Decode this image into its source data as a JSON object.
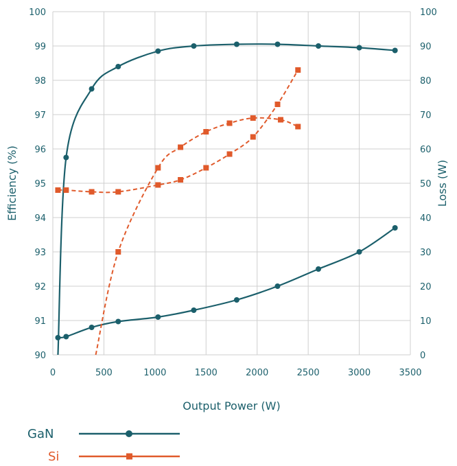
{
  "chart_data": {
    "type": "line",
    "xlabel": "Output Power (W)",
    "ylabel_left": "Efficiency (%)",
    "ylabel_right": "Loss (W)",
    "xlim": [
      0,
      3500
    ],
    "ylim_left": [
      90,
      100
    ],
    "ylim_right": [
      0,
      100
    ],
    "xticks": [
      "0",
      "500",
      "1000",
      "1500",
      "2000",
      "2500",
      "3000",
      "3500"
    ],
    "yticks_left": [
      "90",
      "91",
      "92",
      "93",
      "94",
      "95",
      "96",
      "97",
      "98",
      "99",
      "100"
    ],
    "yticks_right": [
      "0",
      "10",
      "20",
      "30",
      "40",
      "50",
      "60",
      "70",
      "80",
      "90",
      "100"
    ],
    "grid": true,
    "series": [
      {
        "name": "GaN",
        "kind": "efficiency",
        "axis": "left",
        "color": "#1b5f6b",
        "line": "solid",
        "marker": "circle",
        "points": [
          [
            130,
            95.75
          ],
          [
            380,
            97.75
          ],
          [
            640,
            98.4
          ],
          [
            1030,
            98.85
          ],
          [
            1380,
            99.0
          ],
          [
            1800,
            99.05
          ],
          [
            2200,
            99.05
          ],
          [
            2600,
            99.0
          ],
          [
            3000,
            98.95
          ],
          [
            3350,
            98.87
          ]
        ],
        "curve_start": [
          50,
          90.0
        ]
      },
      {
        "name": "GaN",
        "kind": "loss",
        "axis": "right",
        "color": "#1b5f6b",
        "line": "solid",
        "marker": "circle",
        "points": [
          [
            50,
            5
          ],
          [
            130,
            5.3
          ],
          [
            380,
            8
          ],
          [
            640,
            9.7
          ],
          [
            1030,
            11
          ],
          [
            1380,
            13
          ],
          [
            1800,
            16
          ],
          [
            2200,
            20
          ],
          [
            2600,
            25
          ],
          [
            3000,
            30
          ],
          [
            3350,
            37
          ]
        ]
      },
      {
        "name": "Si",
        "kind": "efficiency",
        "axis": "left",
        "color": "#e05a2b",
        "line": "dashed",
        "marker": "square",
        "points": [
          [
            640,
            93.0
          ],
          [
            1030,
            95.45
          ],
          [
            1250,
            96.05
          ],
          [
            1500,
            96.5
          ],
          [
            1730,
            96.75
          ],
          [
            1960,
            96.9
          ],
          [
            2230,
            96.85
          ],
          [
            2400,
            96.65
          ]
        ],
        "curve_start": [
          420,
          90.0
        ]
      },
      {
        "name": "Si",
        "kind": "loss",
        "axis": "right",
        "color": "#e05a2b",
        "line": "dashed",
        "marker": "square",
        "points": [
          [
            50,
            48
          ],
          [
            130,
            48
          ],
          [
            380,
            47.5
          ],
          [
            640,
            47.5
          ],
          [
            1030,
            49.5
          ],
          [
            1250,
            51
          ],
          [
            1500,
            54.5
          ],
          [
            1730,
            58.5
          ],
          [
            1960,
            63.5
          ],
          [
            2200,
            73
          ],
          [
            2400,
            83
          ]
        ]
      }
    ],
    "legend": [
      {
        "label": "GaN",
        "color": "#1b5f6b",
        "line": "solid",
        "marker": "circle"
      },
      {
        "label": "Si",
        "color": "#e05a2b",
        "line": "dashed",
        "marker": "square"
      }
    ],
    "legend_placement": "bottom-left"
  }
}
